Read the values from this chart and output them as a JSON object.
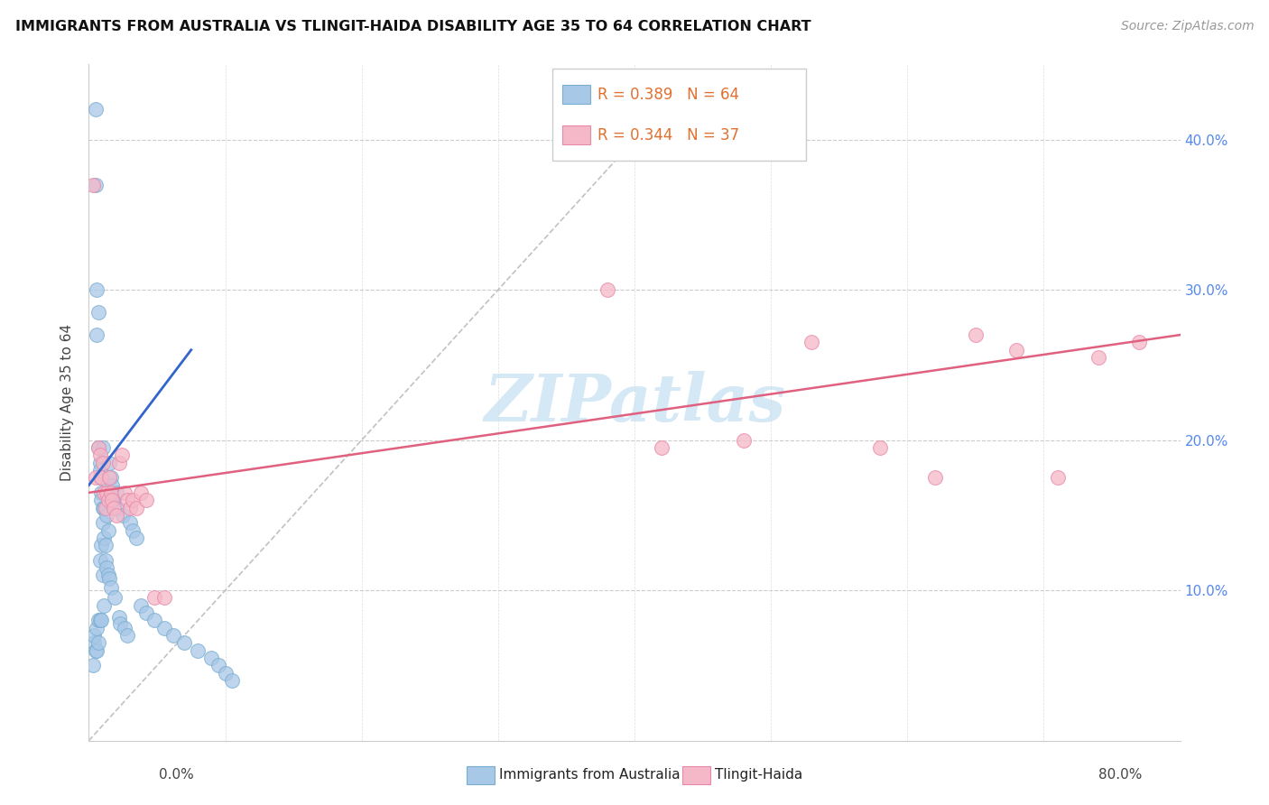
{
  "title": "IMMIGRANTS FROM AUSTRALIA VS TLINGIT-HAIDA DISABILITY AGE 35 TO 64 CORRELATION CHART",
  "source": "Source: ZipAtlas.com",
  "ylabel": "Disability Age 35 to 64",
  "xmin": 0.0,
  "xmax": 0.8,
  "ymin": 0.0,
  "ymax": 0.45,
  "blue_color": "#a8c8e8",
  "blue_edge_color": "#7aaed0",
  "pink_color": "#f5b8c8",
  "pink_edge_color": "#e888a8",
  "blue_line_color": "#3366cc",
  "pink_line_color": "#e06080",
  "diag_line_color": "#bbbbbb",
  "watermark_color": "#d5e8f5",
  "right_tick_color": "#5588ee",
  "blue_scatter_x": [
    0.003,
    0.004,
    0.004,
    0.005,
    0.005,
    0.005,
    0.006,
    0.006,
    0.006,
    0.006,
    0.007,
    0.007,
    0.007,
    0.007,
    0.008,
    0.008,
    0.008,
    0.008,
    0.008,
    0.009,
    0.009,
    0.009,
    0.009,
    0.01,
    0.01,
    0.01,
    0.01,
    0.011,
    0.011,
    0.011,
    0.012,
    0.012,
    0.013,
    0.013,
    0.014,
    0.014,
    0.015,
    0.015,
    0.016,
    0.016,
    0.017,
    0.018,
    0.019,
    0.02,
    0.021,
    0.022,
    0.023,
    0.025,
    0.026,
    0.028,
    0.03,
    0.032,
    0.035,
    0.038,
    0.042,
    0.048,
    0.055,
    0.062,
    0.07,
    0.08,
    0.09,
    0.095,
    0.1,
    0.105
  ],
  "blue_scatter_y": [
    0.05,
    0.065,
    0.07,
    0.42,
    0.37,
    0.06,
    0.3,
    0.27,
    0.075,
    0.06,
    0.285,
    0.195,
    0.08,
    0.065,
    0.185,
    0.18,
    0.175,
    0.12,
    0.08,
    0.165,
    0.16,
    0.13,
    0.08,
    0.195,
    0.155,
    0.145,
    0.11,
    0.155,
    0.135,
    0.09,
    0.13,
    0.12,
    0.15,
    0.115,
    0.14,
    0.11,
    0.185,
    0.108,
    0.175,
    0.102,
    0.17,
    0.16,
    0.095,
    0.165,
    0.155,
    0.082,
    0.078,
    0.15,
    0.075,
    0.07,
    0.145,
    0.14,
    0.135,
    0.09,
    0.085,
    0.08,
    0.075,
    0.07,
    0.065,
    0.06,
    0.055,
    0.05,
    0.045,
    0.04
  ],
  "pink_scatter_x": [
    0.003,
    0.005,
    0.007,
    0.008,
    0.009,
    0.01,
    0.011,
    0.012,
    0.013,
    0.014,
    0.015,
    0.016,
    0.017,
    0.018,
    0.02,
    0.022,
    0.024,
    0.026,
    0.028,
    0.03,
    0.032,
    0.035,
    0.038,
    0.042,
    0.048,
    0.055,
    0.38,
    0.42,
    0.48,
    0.53,
    0.58,
    0.62,
    0.65,
    0.68,
    0.71,
    0.74,
    0.77
  ],
  "pink_scatter_y": [
    0.37,
    0.175,
    0.195,
    0.19,
    0.175,
    0.185,
    0.165,
    0.155,
    0.165,
    0.16,
    0.175,
    0.165,
    0.16,
    0.155,
    0.15,
    0.185,
    0.19,
    0.165,
    0.16,
    0.155,
    0.16,
    0.155,
    0.165,
    0.16,
    0.095,
    0.095,
    0.3,
    0.195,
    0.2,
    0.265,
    0.195,
    0.175,
    0.27,
    0.26,
    0.175,
    0.255,
    0.265
  ],
  "blue_line_x": [
    0.0,
    0.075
  ],
  "blue_line_y": [
    0.17,
    0.26
  ],
  "pink_line_x": [
    0.0,
    0.8
  ],
  "pink_line_y": [
    0.165,
    0.27
  ],
  "diag_line_x": [
    0.0,
    0.44
  ],
  "diag_line_y": [
    0.0,
    0.44
  ],
  "yticks": [
    0.1,
    0.2,
    0.3,
    0.4
  ],
  "ytick_labels": [
    "10.0%",
    "20.0%",
    "30.0%",
    "40.0%"
  ],
  "xticks": [
    0.0,
    0.1,
    0.2,
    0.3,
    0.4,
    0.5,
    0.6,
    0.7,
    0.8
  ]
}
